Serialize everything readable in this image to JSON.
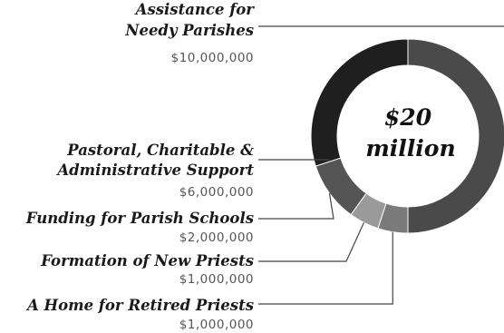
{
  "chart_data": {
    "type": "pie",
    "variant": "donut",
    "center_label": [
      "$20",
      "million"
    ],
    "slices": [
      {
        "label_lines": [
          "Assistance for",
          "Needy Parishes"
        ],
        "amount_label": "$10,000,000",
        "value": 10000000,
        "color": "#4a4a4a"
      },
      {
        "label_lines": [
          "A Home for Retired Priests"
        ],
        "amount_label": "$1,000,000",
        "value": 1000000,
        "color": "#7a7a7a"
      },
      {
        "label_lines": [
          "Formation of New Priests"
        ],
        "amount_label": "$1,000,000",
        "value": 1000000,
        "color": "#9a9a9a"
      },
      {
        "label_lines": [
          "Funding for Parish Schools"
        ],
        "amount_label": "$2,000,000",
        "value": 2000000,
        "color": "#555555"
      },
      {
        "label_lines": [
          "Pastoral, Charitable &",
          "Administrative Support"
        ],
        "amount_label": "$6,000,000",
        "value": 6000000,
        "color": "#1f1f1f"
      }
    ]
  }
}
